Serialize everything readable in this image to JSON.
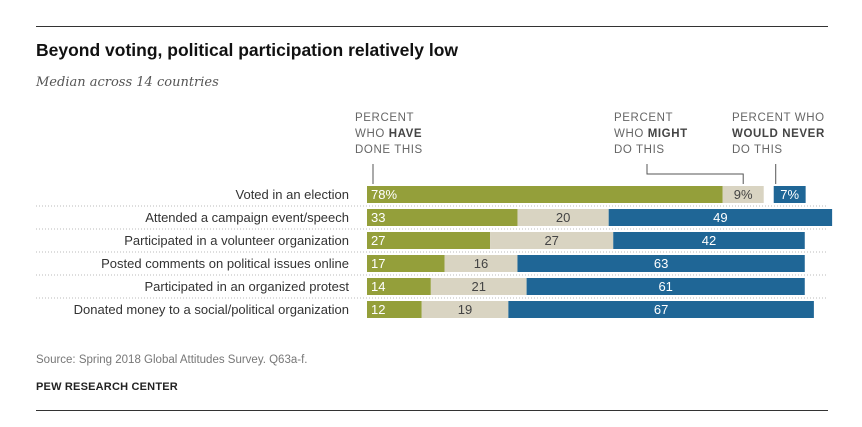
{
  "header": {
    "title": "Beyond voting, political participation relatively low",
    "subtitle": "Median across 14 countries"
  },
  "column_headers": {
    "have_done": {
      "l1": "PERCENT",
      "l2a": "WHO ",
      "l2b": "HAVE",
      "l3": "DONE THIS"
    },
    "might": {
      "l1": "PERCENT",
      "l2a": "WHO ",
      "l2b": "MIGHT",
      "l3": "DO THIS"
    },
    "never": {
      "l1": "PERCENT WHO",
      "l2": "WOULD NEVER",
      "l3": "DO THIS"
    }
  },
  "colors": {
    "have": "#949f3a",
    "might": "#d9d4c2",
    "never": "#1f6696",
    "separator": "#bbbbbb"
  },
  "chart_data": {
    "type": "bar",
    "stacked": true,
    "orientation": "horizontal",
    "categories": [
      "Voted in an election",
      "Attended a campaign event/speech",
      "Participated in a volunteer organization",
      "Posted comments on political issues online",
      "Participated in an organized protest",
      "Donated money to a social/political organization"
    ],
    "series": [
      {
        "key": "have",
        "values": [
          78,
          33,
          27,
          17,
          14,
          12
        ]
      },
      {
        "key": "might",
        "values": [
          9,
          20,
          27,
          16,
          21,
          19
        ]
      },
      {
        "key": "never",
        "values": [
          7,
          49,
          42,
          63,
          61,
          67
        ]
      }
    ],
    "value_labels": [
      [
        "78%",
        "9%",
        "7%"
      ],
      [
        "33",
        "20",
        "49"
      ],
      [
        "27",
        "27",
        "42"
      ],
      [
        "17",
        "16",
        "63"
      ],
      [
        "14",
        "21",
        "61"
      ],
      [
        "12",
        "19",
        "67"
      ]
    ]
  },
  "footer": {
    "source": "Source: Spring 2018 Global Attitudes Survey. Q63a-f.",
    "brand": "PEW RESEARCH CENTER"
  }
}
